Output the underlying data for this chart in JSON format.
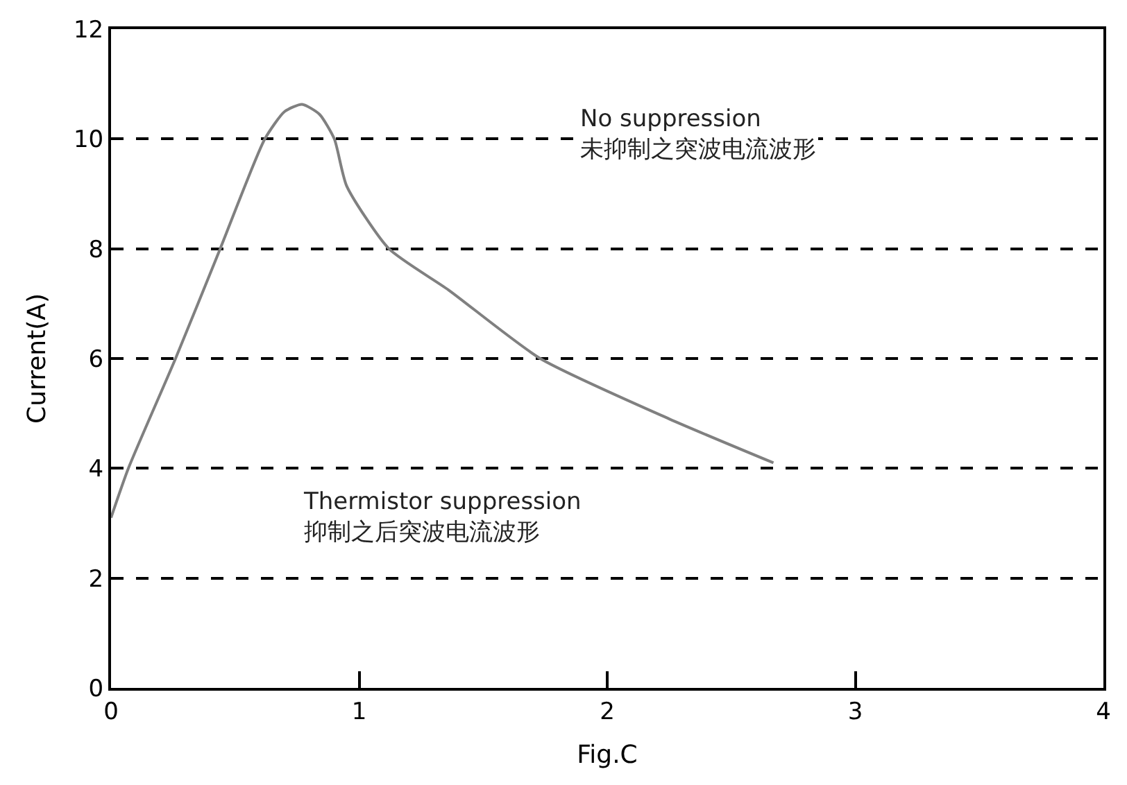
{
  "chart_data": {
    "type": "line",
    "xlabel": "Fig.C",
    "ylabel": "Current(A)",
    "x": [
      0,
      0.07,
      0.26,
      0.44,
      0.62,
      0.7,
      0.77,
      0.84,
      0.9,
      0.95,
      1.12,
      1.36,
      1.73,
      2.25,
      2.67
    ],
    "series": [
      {
        "color": "#808080",
        "values": [
          3.1,
          4,
          6,
          8,
          10,
          10.5,
          10.63,
          10.45,
          10,
          9.14,
          8,
          7.25,
          6,
          4.9,
          4.1
        ]
      }
    ],
    "xlim": [
      0,
      4
    ],
    "xticks": [
      0,
      1,
      2,
      3,
      4
    ],
    "ylim": [
      0,
      12
    ],
    "yticks": [
      0,
      2,
      4,
      6,
      8,
      10,
      12
    ],
    "grid": "y",
    "marker": "none",
    "line_style": "solid",
    "legend": false,
    "annotations": [
      "No suppression\n未抑制之突波电流波形",
      "Thermistor suppression\n抑制之后突波电流波形"
    ]
  }
}
